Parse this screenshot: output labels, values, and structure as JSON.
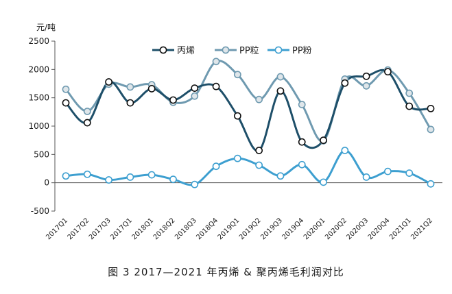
{
  "caption": "图 3  2017—2021 年丙烯 & 聚丙烯毛利润对比",
  "chart_data": {
    "type": "line",
    "title": "",
    "ylabel": "元/吨",
    "xlabel": "",
    "ylim": [
      -500,
      2500
    ],
    "yticks": [
      2500,
      2000,
      1500,
      1000,
      500,
      0,
      -500
    ],
    "legend_position": "top-center",
    "grid": false,
    "categories": [
      "2017Q1",
      "2017Q2",
      "2017Q3",
      "2017Q1",
      "2018Q1",
      "2018Q2",
      "2018Q3",
      "2018Q4",
      "2019Q1",
      "2019Q2",
      "2019Q3",
      "2019Q4",
      "2020Q1",
      "2020Q2",
      "2020Q3",
      "2020Q4",
      "2021Q1",
      "2021Q2"
    ],
    "series": [
      {
        "name": "丙烯",
        "color": "#1e4f69",
        "markerFill": "#ffffff",
        "values": [
          1410,
          1060,
          1780,
          1410,
          1660,
          1460,
          1670,
          1700,
          1180,
          570,
          1620,
          720,
          750,
          1760,
          1880,
          1960,
          1350,
          1310
        ]
      },
      {
        "name": "PP粒",
        "color": "#6f9ab0",
        "markerFill": "#dfe6ea",
        "values": [
          1650,
          1260,
          1740,
          1690,
          1730,
          1420,
          1530,
          2140,
          1910,
          1470,
          1870,
          1380,
          740,
          1830,
          1710,
          1990,
          1580,
          940
        ]
      },
      {
        "name": "PP粉",
        "color": "#3d9fd0",
        "markerFill": "#ffffff",
        "values": [
          120,
          150,
          50,
          100,
          140,
          60,
          -30,
          290,
          430,
          310,
          120,
          320,
          10,
          570,
          100,
          200,
          170,
          -20
        ]
      }
    ]
  }
}
